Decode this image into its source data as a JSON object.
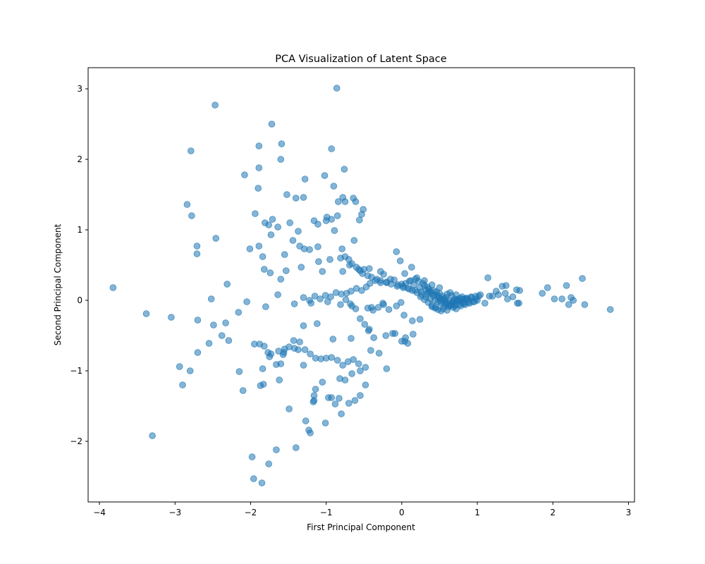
{
  "chart_data": {
    "type": "scatter",
    "title": "PCA Visualization of Latent Space",
    "xlabel": "First Principal Component",
    "ylabel": "Second Principal Component",
    "xlim": [
      -4.15,
      3.08
    ],
    "ylim": [
      -2.86,
      3.3
    ],
    "xticks": [
      -4,
      -3,
      -2,
      -1,
      0,
      1,
      2,
      3
    ],
    "yticks": [
      -2,
      -1,
      0,
      1,
      2,
      3
    ],
    "xtick_labels": [
      "−4",
      "−3",
      "−2",
      "−1",
      "0",
      "1",
      "2",
      "3"
    ],
    "ytick_labels": [
      "−2",
      "−1",
      "0",
      "1",
      "2",
      "3"
    ],
    "grid": false,
    "legend": "none",
    "marker_color": "#1f77b4",
    "marker_alpha": 0.55,
    "x": [
      -0.86,
      -2.47,
      -1.72,
      -1.59,
      -2.79,
      -1.89,
      -0.93,
      -1.6,
      -1.89,
      -2.08,
      -1.28,
      -1.02,
      -0.76,
      -1.9,
      -0.9,
      -1.52,
      -1.4,
      -1.3,
      -0.78,
      -0.61,
      -0.51,
      -0.84,
      -0.64,
      -2.84,
      -1.94,
      -0.75,
      -2.78,
      -0.56,
      -0.53,
      -0.99,
      -0.93,
      -1.81,
      -1.71,
      -1.16,
      -1.76,
      -1.11,
      -0.85,
      -1.48,
      -1.0,
      -2.46,
      -1.73,
      -1.64,
      -0.89,
      -1.37,
      -1.44,
      -1.29,
      -2.71,
      -2.71,
      -1.22,
      -1.89,
      -0.63,
      -1.11,
      -0.79,
      -1.35,
      -1.84,
      -2.01,
      -1.82,
      -1.74,
      -1.55,
      -1.6,
      -1.53,
      -0.95,
      -0.57,
      -0.43,
      -0.78,
      -1.05,
      -1.33,
      -1.1,
      -0.69,
      -0.5,
      -0.24,
      -0.28,
      -0.07,
      -0.02,
      0.04,
      0.13,
      0.2,
      0.3,
      0.4,
      0.5,
      -3.82,
      -3.38,
      -3.05,
      -2.7,
      -2.52,
      -2.31,
      -2.16,
      -2.05,
      -1.8,
      -1.64,
      -1.42,
      -1.2,
      -0.98,
      -0.81,
      -0.66,
      -0.4,
      -0.25,
      -0.01,
      -2.33,
      -2.49,
      -2.55,
      -2.29,
      -2.38,
      -2.7,
      -2.94,
      -2.8,
      -2.9,
      -2.15,
      -2.1,
      -1.87,
      -1.88,
      -1.84,
      -1.83,
      -1.75,
      -1.77,
      -1.66,
      -1.62,
      -1.6,
      -1.55,
      -1.49,
      -1.43,
      -1.37,
      -1.3,
      -1.27,
      -1.17,
      -1.14,
      -1.05,
      -0.97,
      -0.88,
      -0.8,
      -0.7,
      -0.62,
      -0.55,
      -0.48,
      -0.41,
      -0.3,
      -0.2,
      -0.12,
      0.04,
      -3.3,
      -1.98,
      -1.96,
      -1.85,
      -1.76,
      -1.66,
      -1.4,
      -1.23,
      -1.21,
      -1.16,
      -1.16,
      -1.01,
      -0.93,
      -0.83,
      -0.82,
      -0.75,
      -0.66,
      -0.55,
      -0.48,
      -1.95,
      -1.82,
      -1.73,
      -1.57,
      -1.3,
      -1.12,
      -0.91,
      -0.67,
      -0.44,
      -0.21,
      0.05,
      1.93,
      2.02,
      2.12,
      2.18,
      2.21,
      2.24,
      2.27,
      2.39,
      2.42,
      2.76,
      1.86,
      1.56,
      1.52,
      1.47,
      1.4,
      1.37,
      1.28,
      1.16,
      1.1,
      1.55,
      1.53,
      1.38,
      1.33,
      1.2,
      1.14,
      1.25,
      0.1,
      0.05,
      0.0,
      -0.05,
      -0.1,
      -0.15,
      -0.2,
      -0.28,
      -0.35,
      -0.42,
      -0.47,
      -0.53,
      -0.6,
      -0.67,
      -0.73,
      -0.8,
      -0.87,
      -0.94,
      -1.01,
      -1.08,
      -1.15,
      -1.22,
      -1.3,
      -0.45,
      -0.38,
      -0.31,
      -0.24,
      -0.17,
      -0.07,
      0.03,
      0.14,
      0.24,
      -0.09,
      0.0,
      0.08,
      0.15,
      -0.74,
      -0.68,
      -0.61,
      -0.55,
      -0.49,
      -0.43,
      -0.37,
      -0.57,
      -0.64,
      -0.71,
      -0.78,
      -0.85,
      -0.93,
      -1.0,
      -1.07,
      -1.14,
      -1.21,
      -1.28,
      -1.35,
      -1.42,
      -1.49,
      -1.56,
      -1.63,
      -0.81,
      -0.75,
      -0.7,
      -0.66,
      -0.6,
      -0.55,
      -0.52,
      -0.45,
      -0.4,
      -0.33,
      -0.28,
      -0.2,
      -0.14,
      -0.06,
      0.02,
      0.1,
      0.18,
      0.26,
      0.34,
      0.42,
      0.5,
      0.56,
      0.62,
      0.68,
      0.74,
      0.8,
      0.86,
      0.92,
      0.98,
      1.04,
      0.48,
      0.52,
      0.58,
      0.64,
      0.7,
      0.76,
      0.82,
      0.88,
      0.94,
      1.0,
      0.44,
      0.38,
      0.32,
      0.26,
      0.2,
      0.14,
      0.08,
      0.02,
      0.55,
      0.6,
      0.45,
      0.4,
      0.35,
      0.3,
      0.25,
      0.62,
      0.68,
      0.72,
      0.78,
      0.84,
      0.9,
      0.96,
      0.5,
      0.54,
      0.46,
      0.42,
      0.36,
      0.58,
      0.66,
      0.7,
      0.76,
      0.82,
      0.88,
      0.92,
      0.98,
      1.02,
      0.52,
      0.56,
      0.48,
      0.44,
      0.4,
      0.6,
      0.64,
      0.72,
      0.8,
      0.86,
      0.28,
      0.34,
      0.22,
      0.18,
      0.12,
      0.16,
      0.24,
      0.32,
      0.38,
      0.3,
      0.57,
      0.61,
      0.53,
      0.49,
      0.65,
      0.69,
      0.73,
      0.77,
      0.43,
      0.39,
      0.35,
      0.47,
      0.51,
      0.59,
      0.63,
      0.67,
      0.71,
      0.75,
      0.79,
      0.83
    ],
    "y": [
      3.01,
      2.77,
      2.5,
      2.22,
      2.12,
      2.19,
      2.15,
      2.0,
      1.88,
      1.78,
      1.72,
      1.77,
      1.86,
      1.59,
      1.62,
      1.5,
      1.45,
      1.46,
      1.46,
      1.4,
      1.29,
      1.4,
      1.45,
      1.36,
      1.23,
      1.4,
      1.2,
      1.14,
      1.22,
      1.18,
      1.15,
      1.1,
      1.15,
      1.13,
      1.07,
      1.08,
      1.2,
      1.1,
      1.13,
      0.88,
      0.93,
      1.04,
      0.99,
      0.98,
      0.85,
      0.73,
      0.77,
      0.66,
      0.72,
      0.77,
      0.85,
      0.76,
      0.73,
      0.77,
      0.62,
      0.73,
      0.44,
      0.39,
      0.65,
      0.3,
      0.42,
      0.58,
      0.44,
      0.45,
      0.41,
      0.41,
      0.47,
      0.55,
      0.5,
      0.44,
      0.37,
      0.41,
      0.69,
      0.56,
      0.38,
      0.47,
      0.32,
      0.28,
      0.22,
      0.18,
      0.18,
      -0.19,
      -0.24,
      -0.28,
      0.02,
      0.23,
      -0.17,
      -0.02,
      -0.09,
      0.08,
      -0.05,
      -0.04,
      -0.02,
      -0.06,
      -0.08,
      -0.1,
      -0.04,
      -0.03,
      -0.32,
      -0.35,
      -0.61,
      -0.57,
      -0.5,
      -0.74,
      -0.94,
      -1.0,
      -1.2,
      -1.01,
      -1.28,
      -1.21,
      -0.62,
      -0.97,
      -1.19,
      -0.8,
      -0.74,
      -0.91,
      -1.13,
      -0.9,
      -0.69,
      -1.54,
      -0.57,
      -0.7,
      -0.92,
      -1.71,
      -1.44,
      -1.26,
      -1.16,
      -1.38,
      -1.47,
      -1.61,
      -1.46,
      -1.42,
      -1.35,
      -1.2,
      -0.71,
      -0.75,
      -0.97,
      -0.47,
      -0.58,
      -1.92,
      -2.22,
      -2.53,
      -2.59,
      -2.32,
      -2.12,
      -2.09,
      -1.84,
      -1.88,
      -1.42,
      -1.35,
      -1.74,
      -1.38,
      -1.39,
      -1.11,
      -1.13,
      -1.04,
      -1.0,
      -0.95,
      -0.62,
      -0.65,
      -0.76,
      -0.77,
      -0.36,
      -0.33,
      -0.55,
      -0.54,
      -0.43,
      -0.5,
      -0.53,
      0.18,
      0.02,
      0.02,
      0.21,
      -0.06,
      0.04,
      0.0,
      0.31,
      -0.06,
      -0.13,
      0.1,
      0.14,
      0.15,
      0.05,
      0.02,
      0.1,
      0.08,
      0.06,
      -0.04,
      -0.04,
      -0.04,
      0.21,
      0.2,
      0.06,
      0.32,
      0.13,
      0.27,
      0.24,
      0.23,
      0.22,
      0.29,
      0.3,
      0.26,
      0.25,
      0.28,
      0.24,
      0.19,
      0.14,
      0.17,
      0.13,
      0.1,
      0.09,
      0.11,
      0.05,
      0.07,
      0.02,
      0.06,
      0.0,
      0.04,
      -0.11,
      -0.14,
      -0.1,
      -0.06,
      -0.13,
      -0.08,
      -0.21,
      -0.29,
      -0.27,
      -0.47,
      -0.58,
      -0.61,
      -0.48,
      0.01,
      -0.05,
      -0.12,
      -0.26,
      -0.34,
      -0.41,
      -0.53,
      -0.9,
      -0.84,
      -0.87,
      -0.92,
      -0.85,
      -0.81,
      -0.82,
      -0.83,
      -0.82,
      -0.76,
      -0.7,
      -0.59,
      -0.68,
      -0.66,
      -0.74,
      -0.72,
      0.6,
      0.62,
      0.58,
      0.52,
      0.47,
      0.42,
      0.38,
      0.35,
      0.33,
      0.3,
      0.28,
      0.25,
      0.23,
      0.2,
      0.18,
      0.16,
      0.14,
      0.12,
      0.09,
      0.06,
      0.03,
      0.02,
      0.0,
      -0.01,
      0.01,
      0.02,
      0.03,
      0.05,
      0.06,
      0.08,
      -0.02,
      -0.04,
      -0.05,
      -0.07,
      -0.08,
      -0.06,
      -0.05,
      -0.03,
      -0.02,
      0.0,
      0.0,
      0.02,
      0.05,
      0.08,
      0.11,
      0.14,
      0.17,
      0.2,
      -0.12,
      -0.14,
      -0.1,
      -0.07,
      -0.03,
      0.01,
      0.05,
      -0.09,
      -0.1,
      -0.12,
      -0.08,
      -0.06,
      -0.04,
      -0.02,
      0.1,
      0.06,
      0.12,
      0.14,
      0.16,
      0.04,
      0.07,
      0.02,
      -0.01,
      -0.03,
      0.01,
      0.04,
      0.02,
      0.06,
      -0.15,
      -0.08,
      -0.13,
      -0.11,
      -0.09,
      0.09,
      0.11,
      0.08,
      0.05,
      0.03,
      0.24,
      0.19,
      0.27,
      0.3,
      0.28,
      0.22,
      0.18,
      0.15,
      0.13,
      0.21,
      0.0,
      -0.03,
      0.02,
      0.04,
      -0.06,
      -0.02,
      0.01,
      0.03,
      0.08,
      0.1,
      0.12,
      0.07,
      -0.01,
      -0.05,
      -0.07,
      -0.04,
      -0.06,
      0.0,
      -0.02,
      0.02
    ]
  }
}
